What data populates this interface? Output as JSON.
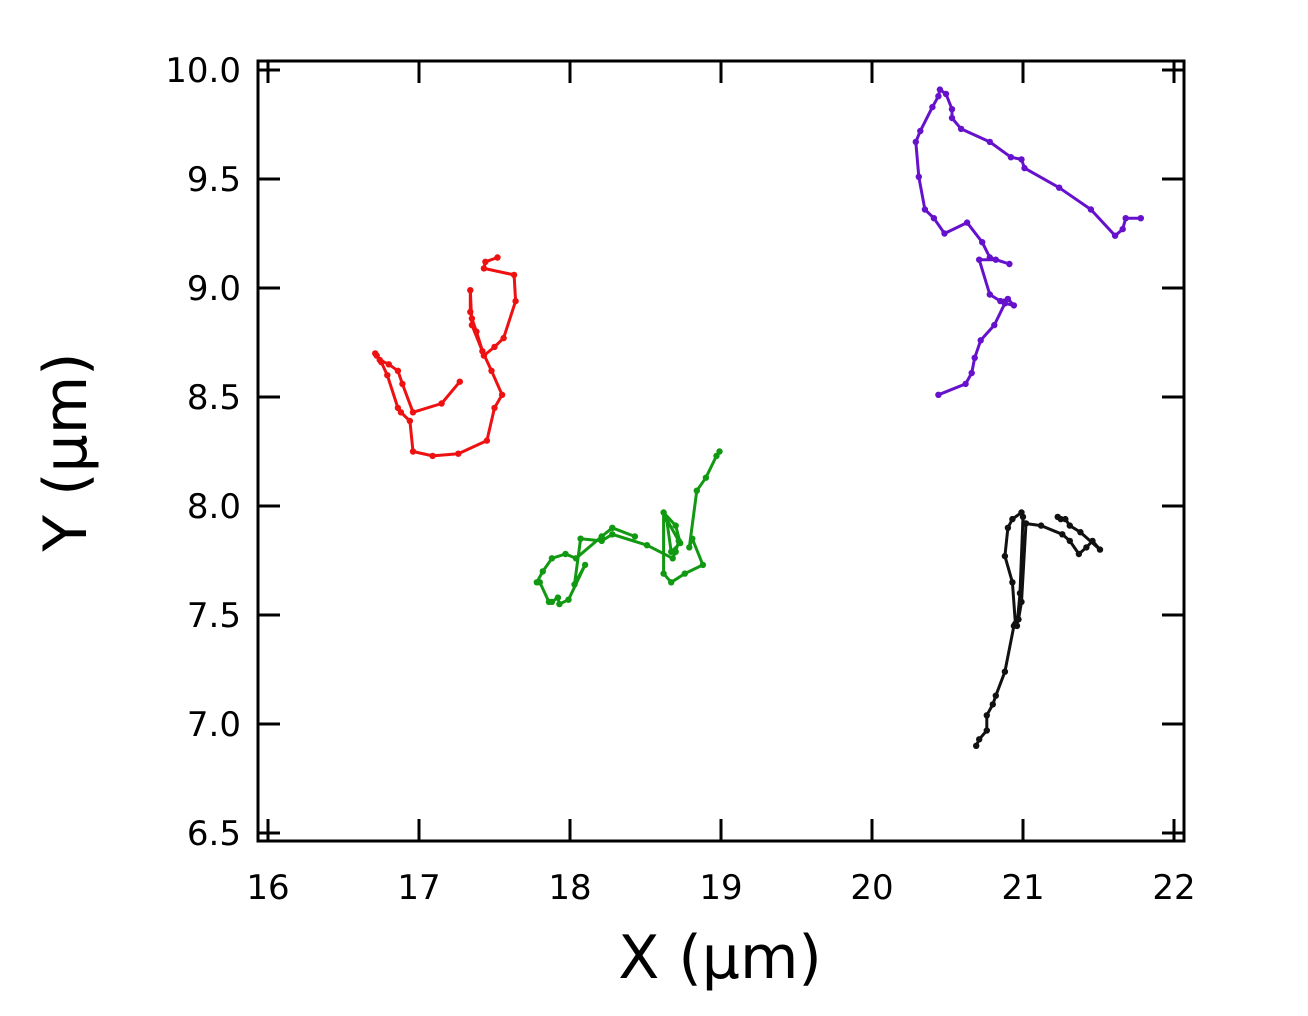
{
  "chart_data": {
    "type": "line",
    "title": "",
    "xlabel": "X  (µm)",
    "ylabel": "Y (µm)",
    "xlim": [
      16,
      22
    ],
    "ylim": [
      6.5,
      10
    ],
    "xticks": [
      "16",
      "17",
      "18",
      "19",
      "20",
      "21",
      "22"
    ],
    "yticks": [
      "6.5",
      "7.0",
      "7.5",
      "8.0",
      "8.5",
      "9.0",
      "9.5",
      "10.0"
    ],
    "grid": false,
    "legend": "none",
    "series": [
      {
        "color": "#ee1111",
        "x": [
          17.52,
          17.44,
          17.43,
          17.63,
          17.64,
          17.56,
          17.5,
          17.43,
          17.38,
          17.35,
          17.34,
          17.34,
          17.35,
          17.42,
          17.48,
          17.55,
          17.5,
          17.45,
          17.26,
          17.09,
          16.96,
          16.94,
          16.88,
          16.86,
          16.79,
          16.75,
          16.72,
          16.71,
          16.74,
          16.8,
          16.86,
          16.89,
          16.96,
          17.15,
          17.27
        ],
        "y": [
          9.14,
          9.12,
          9.09,
          9.06,
          8.94,
          8.77,
          8.73,
          8.69,
          8.8,
          8.86,
          8.89,
          8.99,
          8.83,
          8.71,
          8.62,
          8.51,
          8.45,
          8.3,
          8.24,
          8.23,
          8.25,
          8.39,
          8.43,
          8.45,
          8.6,
          8.66,
          8.69,
          8.7,
          8.67,
          8.65,
          8.62,
          8.56,
          8.43,
          8.47,
          8.57
        ]
      },
      {
        "color": "#119911",
        "x": [
          18.99,
          18.97,
          18.9,
          18.84,
          18.79,
          18.81,
          18.88,
          18.76,
          18.67,
          18.62,
          18.62,
          18.7,
          18.73,
          18.67,
          18.64,
          18.72,
          18.7,
          18.68,
          18.51,
          18.28,
          18.21,
          18.07,
          18.03,
          18.1,
          17.99,
          17.93,
          17.92,
          17.88,
          17.86,
          17.8,
          17.78,
          17.82,
          17.88,
          17.97,
          18.04,
          18.21,
          18.28,
          18.43
        ],
        "y": [
          8.25,
          8.23,
          8.13,
          8.07,
          7.81,
          7.85,
          7.73,
          7.69,
          7.65,
          7.69,
          7.97,
          7.91,
          7.83,
          7.79,
          7.94,
          7.84,
          7.79,
          7.76,
          7.82,
          7.87,
          7.84,
          7.85,
          7.64,
          7.73,
          7.57,
          7.55,
          7.58,
          7.56,
          7.56,
          7.65,
          7.65,
          7.7,
          7.76,
          7.78,
          7.76,
          7.86,
          7.9,
          7.86
        ]
      },
      {
        "color": "#6611cc",
        "x": [
          21.78,
          21.68,
          21.66,
          21.61,
          21.45,
          21.24,
          21.01,
          20.99,
          20.92,
          20.78,
          20.59,
          20.53,
          20.53,
          20.49,
          20.45,
          20.44,
          20.4,
          20.32,
          20.29,
          20.31,
          20.35,
          20.41,
          20.48,
          20.63,
          20.73,
          20.78,
          20.91,
          20.82,
          20.71,
          20.78,
          20.85,
          20.9,
          20.94,
          20.88,
          20.81,
          20.72,
          20.68,
          20.66,
          20.62,
          20.44
        ],
        "y": [
          9.32,
          9.32,
          9.27,
          9.24,
          9.36,
          9.46,
          9.55,
          9.59,
          9.6,
          9.67,
          9.73,
          9.78,
          9.82,
          9.89,
          9.91,
          9.88,
          9.83,
          9.72,
          9.67,
          9.51,
          9.36,
          9.32,
          9.25,
          9.3,
          9.21,
          9.14,
          9.11,
          9.13,
          9.13,
          8.97,
          8.94,
          8.95,
          8.92,
          8.93,
          8.83,
          8.76,
          8.68,
          8.61,
          8.56,
          8.51
        ]
      },
      {
        "color": "#111111",
        "x": [
          20.69,
          20.71,
          20.76,
          20.76,
          20.8,
          20.82,
          20.88,
          20.94,
          20.96,
          20.98,
          21.0,
          20.99,
          20.93,
          20.9,
          20.88,
          20.93,
          20.95,
          20.97,
          20.99,
          21.02,
          21.01,
          21.12,
          21.26,
          21.31,
          21.37,
          21.42,
          21.46,
          21.51,
          21.38,
          21.31,
          21.28,
          21.25,
          21.23
        ],
        "y": [
          6.9,
          6.93,
          6.97,
          7.04,
          7.09,
          7.13,
          7.24,
          7.45,
          7.45,
          7.6,
          7.95,
          7.97,
          7.94,
          7.9,
          7.77,
          7.65,
          7.46,
          7.48,
          7.56,
          7.92,
          7.92,
          7.91,
          7.87,
          7.84,
          7.78,
          7.81,
          7.84,
          7.8,
          7.88,
          7.91,
          7.94,
          7.94,
          7.95
        ]
      }
    ]
  }
}
